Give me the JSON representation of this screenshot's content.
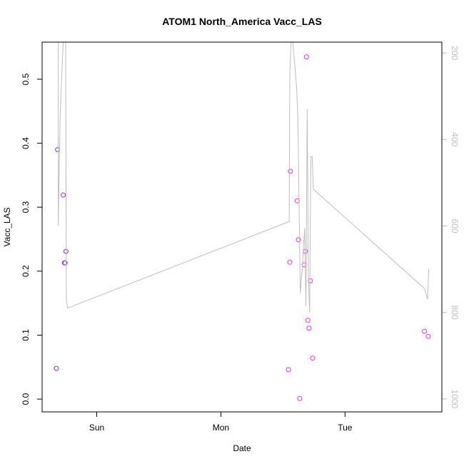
{
  "chart_data": {
    "type": "scatter",
    "title": "ATOM1 North_America Vacc_LAS",
    "xlabel": "Date",
    "ylabel": "Vacc_LAS",
    "x_unit": "day offset from Sun 00:00",
    "xlim": [
      -0.44,
      2.78
    ],
    "ylim": [
      -0.02,
      0.558
    ],
    "x_ticks": [
      {
        "value": 0,
        "label": "Sun"
      },
      {
        "value": 1,
        "label": "Mon"
      },
      {
        "value": 2,
        "label": "Tue"
      }
    ],
    "y_ticks": [
      0.0,
      0.1,
      0.2,
      0.3,
      0.4,
      0.5
    ],
    "y_tick_labels": [
      "0.0",
      "0.1",
      "0.2",
      "0.3",
      "0.4",
      "0.5"
    ],
    "y2_lim": [
      1030,
      175
    ],
    "y2_ticks": [
      200,
      400,
      600,
      800,
      1000
    ],
    "y2_tick_labels": [
      "200",
      "400",
      "600",
      "800",
      "1000"
    ],
    "grid": false,
    "series": [
      {
        "color": "#8B2BE2",
        "points": [
          {
            "x": -0.325,
            "y": 0.048
          },
          {
            "x": -0.315,
            "y": 0.39
          },
          {
            "x": -0.27,
            "y": 0.319
          },
          {
            "x": -0.26,
            "y": 0.213
          },
          {
            "x": -0.255,
            "y": 0.213
          },
          {
            "x": -0.248,
            "y": 0.231
          }
        ]
      },
      {
        "color": "#EE30EE",
        "points": [
          {
            "x": 1.545,
            "y": 0.046
          },
          {
            "x": 1.555,
            "y": 0.214
          },
          {
            "x": 1.56,
            "y": 0.356
          },
          {
            "x": 1.615,
            "y": 0.31
          },
          {
            "x": 1.625,
            "y": 0.249
          },
          {
            "x": 1.635,
            "y": 0.001
          },
          {
            "x": 1.67,
            "y": 0.21
          },
          {
            "x": 1.68,
            "y": 0.231
          },
          {
            "x": 1.69,
            "y": 0.535
          },
          {
            "x": 1.7,
            "y": 0.123
          },
          {
            "x": 1.71,
            "y": 0.111
          },
          {
            "x": 1.72,
            "y": 0.185
          },
          {
            "x": 1.74,
            "y": 0.064
          },
          {
            "x": 2.64,
            "y": 0.106
          },
          {
            "x": 2.67,
            "y": 0.098
          }
        ]
      },
      {
        "type": "line",
        "axis": "right",
        "color": "#bebebe",
        "points": [
          {
            "x": -0.32,
            "y": 175
          },
          {
            "x": -0.31,
            "y": 175
          },
          {
            "x": -0.31,
            "y": 600
          },
          {
            "x": -0.295,
            "y": 350
          },
          {
            "x": -0.28,
            "y": 240
          },
          {
            "x": -0.27,
            "y": 175
          },
          {
            "x": -0.25,
            "y": 175
          },
          {
            "x": -0.245,
            "y": 770
          },
          {
            "x": -0.235,
            "y": 790
          },
          {
            "x": 1.55,
            "y": 590
          },
          {
            "x": 1.555,
            "y": 250
          },
          {
            "x": 1.565,
            "y": 175
          },
          {
            "x": 1.58,
            "y": 175
          },
          {
            "x": 1.61,
            "y": 280
          },
          {
            "x": 1.62,
            "y": 350
          },
          {
            "x": 1.64,
            "y": 755
          },
          {
            "x": 1.655,
            "y": 700
          },
          {
            "x": 1.665,
            "y": 650
          },
          {
            "x": 1.675,
            "y": 605
          },
          {
            "x": 1.685,
            "y": 785
          },
          {
            "x": 1.695,
            "y": 330
          },
          {
            "x": 1.7,
            "y": 500
          },
          {
            "x": 1.705,
            "y": 720
          },
          {
            "x": 1.715,
            "y": 800
          },
          {
            "x": 1.72,
            "y": 600
          },
          {
            "x": 1.725,
            "y": 440
          },
          {
            "x": 1.735,
            "y": 440
          },
          {
            "x": 1.745,
            "y": 515
          },
          {
            "x": 2.64,
            "y": 745
          },
          {
            "x": 2.665,
            "y": 770
          },
          {
            "x": 2.675,
            "y": 700
          }
        ]
      }
    ]
  }
}
